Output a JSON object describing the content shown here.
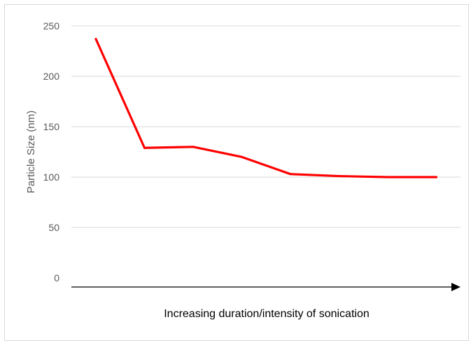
{
  "chart_data": {
    "type": "line",
    "title": "",
    "xlabel": "Increasing duration/intensity of sonication",
    "ylabel": "Particle Size (nm)",
    "ylim": [
      0,
      250
    ],
    "yticks": [
      0,
      50,
      100,
      150,
      200,
      250
    ],
    "grid": true,
    "legend": "none",
    "x": [
      1,
      2,
      3,
      4,
      5,
      6,
      7,
      8
    ],
    "series": [
      {
        "color": "#ff0000",
        "values": [
          237,
          129,
          130,
          120,
          103,
          101,
          100,
          100
        ]
      }
    ],
    "x_axis_arrow": true
  },
  "colors": {
    "line": "#ff0000",
    "grid": "#d9d9d9",
    "axis": "#000000",
    "text": "#595959"
  }
}
